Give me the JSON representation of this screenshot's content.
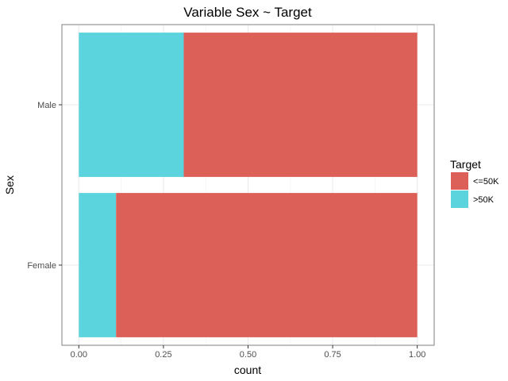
{
  "chart_data": {
    "type": "bar",
    "orientation": "horizontal",
    "stacking": "fill",
    "title": "Variable Sex ~ Target",
    "xlabel": "count",
    "ylabel": "Sex",
    "categories": [
      "Female",
      "Male"
    ],
    "series": [
      {
        "name": ">50K",
        "color": "#5bd4de",
        "values": [
          0.11,
          0.31
        ]
      },
      {
        "name": "<=50K",
        "color": "#dd6058",
        "values": [
          0.89,
          0.69
        ]
      }
    ],
    "xlim": [
      -0.05,
      1.05
    ],
    "xticks": [
      0,
      0.25,
      0.5,
      0.75,
      1
    ],
    "xtick_labels": [
      "0.00",
      "0.25",
      "0.50",
      "0.75",
      "1.00"
    ],
    "grid": true,
    "legend": {
      "title": "Target",
      "position": "right",
      "entries": [
        {
          "label": "<=50K",
          "color": "#dd6058"
        },
        {
          "label": ">50K",
          "color": "#5bd4de"
        }
      ]
    }
  }
}
